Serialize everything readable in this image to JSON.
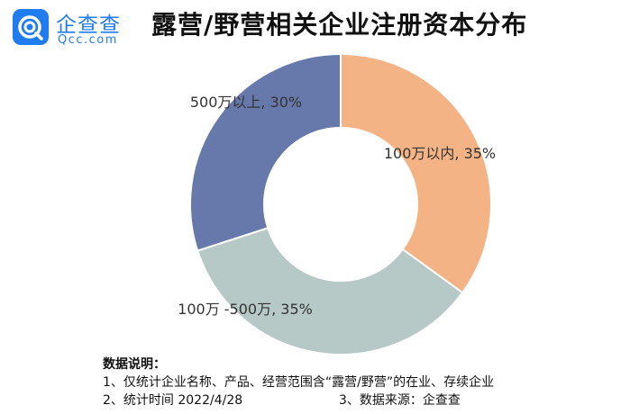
{
  "logo": {
    "name_cn": "企查查",
    "name_en": "Qcc.com",
    "brand_color": "#1f7df0"
  },
  "chart_data": {
    "type": "pie",
    "title": "露营/野营相关企业注册资本分布",
    "categories": [
      "100万以内",
      "100万-500万",
      "500万以上"
    ],
    "values": [
      35,
      35,
      30
    ],
    "labels": [
      "100万以内, 35%",
      "100万 -500万, 35%",
      "500万以上, 30%"
    ],
    "colors": [
      "#f4b384",
      "#b6c9c7",
      "#6679aa"
    ],
    "start_angle_deg": 0,
    "direction": "clockwise",
    "donut": true
  },
  "notes": {
    "title": "数据说明：",
    "line1": "1、仅统计企业名称、产品、经营范围含“露营/野营”的在业、存续企业",
    "line2": "2、统计时间 2022/4/28",
    "line3": "3、数据来源：企查查"
  }
}
